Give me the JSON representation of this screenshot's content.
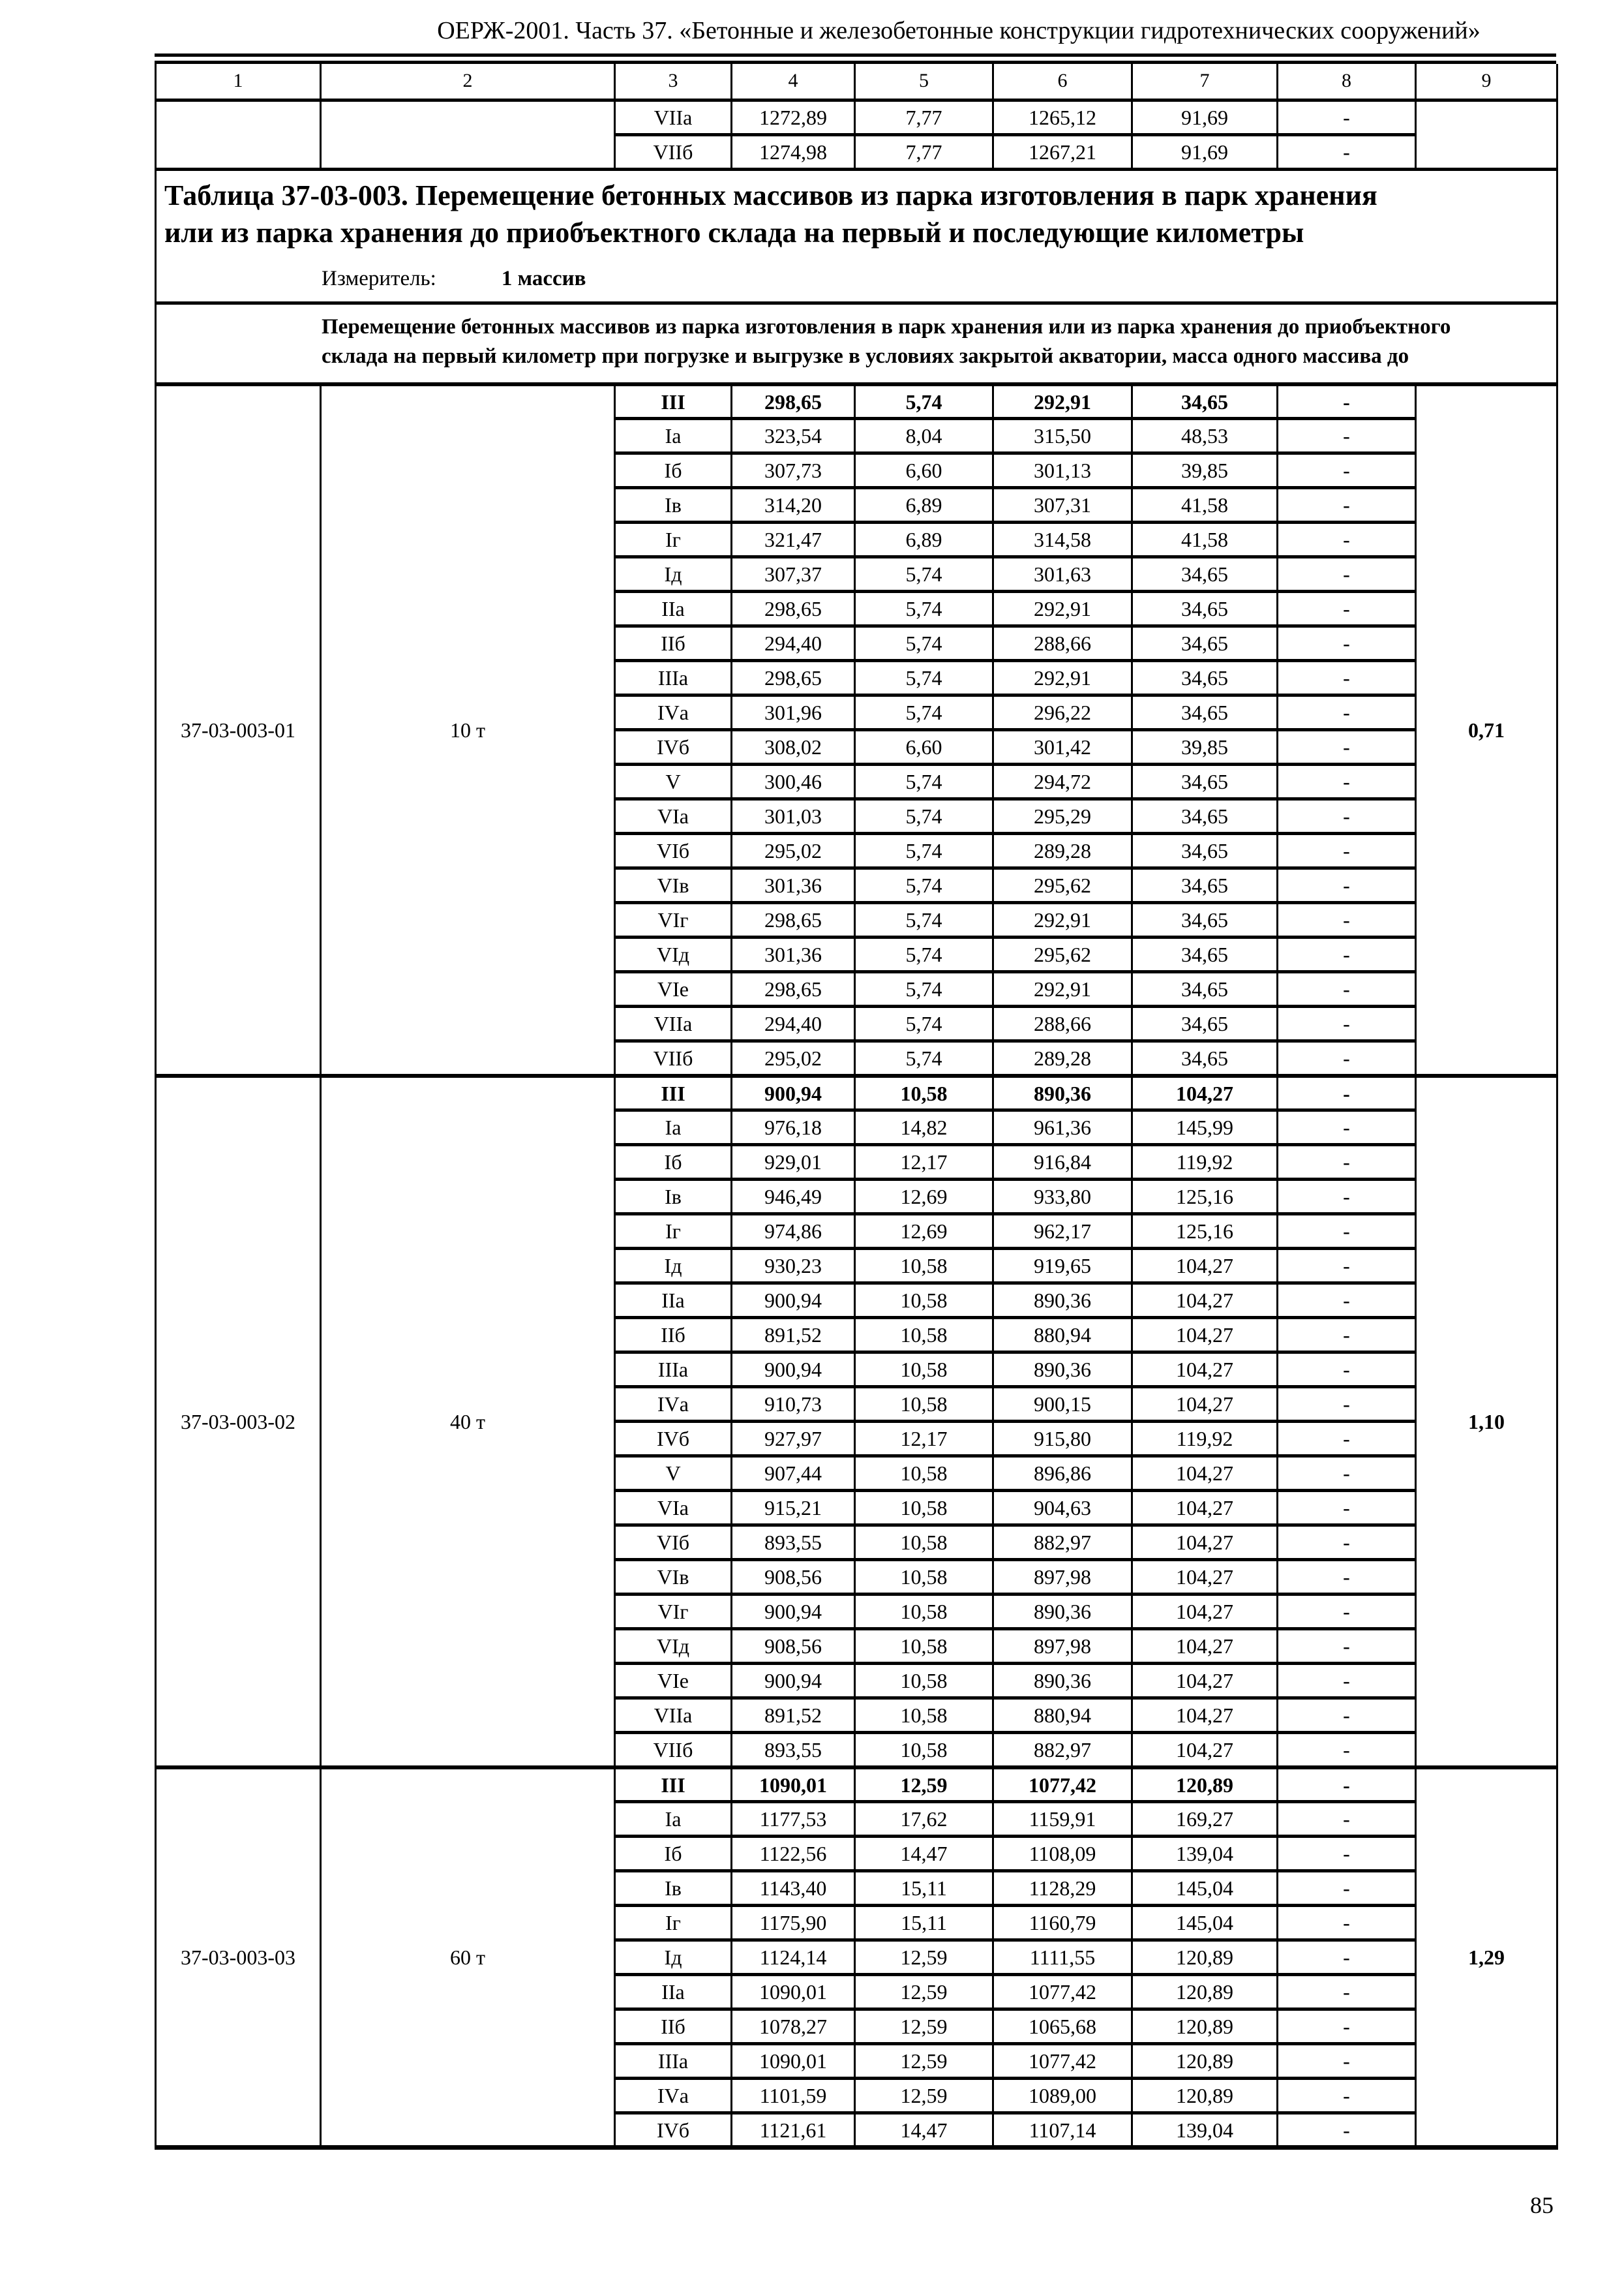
{
  "colors": {
    "text": "#000000",
    "background": "#ffffff"
  },
  "page": {
    "header": "ОЕРЖ-2001. Часть 37. «Бетонные и железобетонные конструкции гидротехнических сооружений»",
    "page_number": "85"
  },
  "table": {
    "column_headers": [
      "1",
      "2",
      "3",
      "4",
      "5",
      "6",
      "7",
      "8",
      "9"
    ],
    "continuation_rows": [
      {
        "zone": "VIIа",
        "values": [
          "1272,89",
          "7,77",
          "1265,12",
          "91,69",
          "-"
        ]
      },
      {
        "zone": "VIIб",
        "values": [
          "1274,98",
          "7,77",
          "1267,21",
          "91,69",
          "-"
        ]
      }
    ],
    "title": "Таблица 37-03-003. Перемещение бетонных массивов из парка изготовления в парк хранения или из парка хранения до приобъектного склада на первый и последующие километры",
    "measurer_label": "Измеритель:",
    "measurer_value": "1 массив",
    "description": "Перемещение бетонных массивов из парка изготовления в парк хранения или из парка хранения до приобъектного склада на первый километр при погрузке и выгрузке в условиях закрытой акватории, масса одного массива до",
    "sections": [
      {
        "code": "37-03-003-01",
        "mass": "10 т",
        "factor": "0,71",
        "rows": [
          {
            "zone": "III",
            "values": [
              "298,65",
              "5,74",
              "292,91",
              "34,65",
              "-"
            ]
          },
          {
            "zone": "Iа",
            "values": [
              "323,54",
              "8,04",
              "315,50",
              "48,53",
              "-"
            ]
          },
          {
            "zone": "Iб",
            "values": [
              "307,73",
              "6,60",
              "301,13",
              "39,85",
              "-"
            ]
          },
          {
            "zone": "Iв",
            "values": [
              "314,20",
              "6,89",
              "307,31",
              "41,58",
              "-"
            ]
          },
          {
            "zone": "Iг",
            "values": [
              "321,47",
              "6,89",
              "314,58",
              "41,58",
              "-"
            ]
          },
          {
            "zone": "Iд",
            "values": [
              "307,37",
              "5,74",
              "301,63",
              "34,65",
              "-"
            ]
          },
          {
            "zone": "IIа",
            "values": [
              "298,65",
              "5,74",
              "292,91",
              "34,65",
              "-"
            ]
          },
          {
            "zone": "IIб",
            "values": [
              "294,40",
              "5,74",
              "288,66",
              "34,65",
              "-"
            ]
          },
          {
            "zone": "IIIа",
            "values": [
              "298,65",
              "5,74",
              "292,91",
              "34,65",
              "-"
            ]
          },
          {
            "zone": "IVа",
            "values": [
              "301,96",
              "5,74",
              "296,22",
              "34,65",
              "-"
            ]
          },
          {
            "zone": "IVб",
            "values": [
              "308,02",
              "6,60",
              "301,42",
              "39,85",
              "-"
            ]
          },
          {
            "zone": "V",
            "values": [
              "300,46",
              "5,74",
              "294,72",
              "34,65",
              "-"
            ]
          },
          {
            "zone": "VIа",
            "values": [
              "301,03",
              "5,74",
              "295,29",
              "34,65",
              "-"
            ]
          },
          {
            "zone": "VIб",
            "values": [
              "295,02",
              "5,74",
              "289,28",
              "34,65",
              "-"
            ]
          },
          {
            "zone": "VIв",
            "values": [
              "301,36",
              "5,74",
              "295,62",
              "34,65",
              "-"
            ]
          },
          {
            "zone": "VIг",
            "values": [
              "298,65",
              "5,74",
              "292,91",
              "34,65",
              "-"
            ]
          },
          {
            "zone": "VIд",
            "values": [
              "301,36",
              "5,74",
              "295,62",
              "34,65",
              "-"
            ]
          },
          {
            "zone": "VIе",
            "values": [
              "298,65",
              "5,74",
              "292,91",
              "34,65",
              "-"
            ]
          },
          {
            "zone": "VIIа",
            "values": [
              "294,40",
              "5,74",
              "288,66",
              "34,65",
              "-"
            ]
          },
          {
            "zone": "VIIб",
            "values": [
              "295,02",
              "5,74",
              "289,28",
              "34,65",
              "-"
            ]
          }
        ]
      },
      {
        "code": "37-03-003-02",
        "mass": "40 т",
        "factor": "1,10",
        "rows": [
          {
            "zone": "III",
            "values": [
              "900,94",
              "10,58",
              "890,36",
              "104,27",
              "-"
            ]
          },
          {
            "zone": "Iа",
            "values": [
              "976,18",
              "14,82",
              "961,36",
              "145,99",
              "-"
            ]
          },
          {
            "zone": "Iб",
            "values": [
              "929,01",
              "12,17",
              "916,84",
              "119,92",
              "-"
            ]
          },
          {
            "zone": "Iв",
            "values": [
              "946,49",
              "12,69",
              "933,80",
              "125,16",
              "-"
            ]
          },
          {
            "zone": "Iг",
            "values": [
              "974,86",
              "12,69",
              "962,17",
              "125,16",
              "-"
            ]
          },
          {
            "zone": "Iд",
            "values": [
              "930,23",
              "10,58",
              "919,65",
              "104,27",
              "-"
            ]
          },
          {
            "zone": "IIа",
            "values": [
              "900,94",
              "10,58",
              "890,36",
              "104,27",
              "-"
            ]
          },
          {
            "zone": "IIб",
            "values": [
              "891,52",
              "10,58",
              "880,94",
              "104,27",
              "-"
            ]
          },
          {
            "zone": "IIIа",
            "values": [
              "900,94",
              "10,58",
              "890,36",
              "104,27",
              "-"
            ]
          },
          {
            "zone": "IVа",
            "values": [
              "910,73",
              "10,58",
              "900,15",
              "104,27",
              "-"
            ]
          },
          {
            "zone": "IVб",
            "values": [
              "927,97",
              "12,17",
              "915,80",
              "119,92",
              "-"
            ]
          },
          {
            "zone": "V",
            "values": [
              "907,44",
              "10,58",
              "896,86",
              "104,27",
              "-"
            ]
          },
          {
            "zone": "VIа",
            "values": [
              "915,21",
              "10,58",
              "904,63",
              "104,27",
              "-"
            ]
          },
          {
            "zone": "VIб",
            "values": [
              "893,55",
              "10,58",
              "882,97",
              "104,27",
              "-"
            ]
          },
          {
            "zone": "VIв",
            "values": [
              "908,56",
              "10,58",
              "897,98",
              "104,27",
              "-"
            ]
          },
          {
            "zone": "VIг",
            "values": [
              "900,94",
              "10,58",
              "890,36",
              "104,27",
              "-"
            ]
          },
          {
            "zone": "VIд",
            "values": [
              "908,56",
              "10,58",
              "897,98",
              "104,27",
              "-"
            ]
          },
          {
            "zone": "VIе",
            "values": [
              "900,94",
              "10,58",
              "890,36",
              "104,27",
              "-"
            ]
          },
          {
            "zone": "VIIа",
            "values": [
              "891,52",
              "10,58",
              "880,94",
              "104,27",
              "-"
            ]
          },
          {
            "zone": "VIIб",
            "values": [
              "893,55",
              "10,58",
              "882,97",
              "104,27",
              "-"
            ]
          }
        ]
      },
      {
        "code": "37-03-003-03",
        "mass": "60 т",
        "factor": "1,29",
        "rows": [
          {
            "zone": "III",
            "values": [
              "1090,01",
              "12,59",
              "1077,42",
              "120,89",
              "-"
            ]
          },
          {
            "zone": "Iа",
            "values": [
              "1177,53",
              "17,62",
              "1159,91",
              "169,27",
              "-"
            ]
          },
          {
            "zone": "Iб",
            "values": [
              "1122,56",
              "14,47",
              "1108,09",
              "139,04",
              "-"
            ]
          },
          {
            "zone": "Iв",
            "values": [
              "1143,40",
              "15,11",
              "1128,29",
              "145,04",
              "-"
            ]
          },
          {
            "zone": "Iг",
            "values": [
              "1175,90",
              "15,11",
              "1160,79",
              "145,04",
              "-"
            ]
          },
          {
            "zone": "Iд",
            "values": [
              "1124,14",
              "12,59",
              "1111,55",
              "120,89",
              "-"
            ]
          },
          {
            "zone": "IIа",
            "values": [
              "1090,01",
              "12,59",
              "1077,42",
              "120,89",
              "-"
            ]
          },
          {
            "zone": "IIб",
            "values": [
              "1078,27",
              "12,59",
              "1065,68",
              "120,89",
              "-"
            ]
          },
          {
            "zone": "IIIа",
            "values": [
              "1090,01",
              "12,59",
              "1077,42",
              "120,89",
              "-"
            ]
          },
          {
            "zone": "IVа",
            "values": [
              "1101,59",
              "12,59",
              "1089,00",
              "120,89",
              "-"
            ]
          },
          {
            "zone": "IVб",
            "values": [
              "1121,61",
              "14,47",
              "1107,14",
              "139,04",
              "-"
            ]
          }
        ]
      }
    ]
  }
}
